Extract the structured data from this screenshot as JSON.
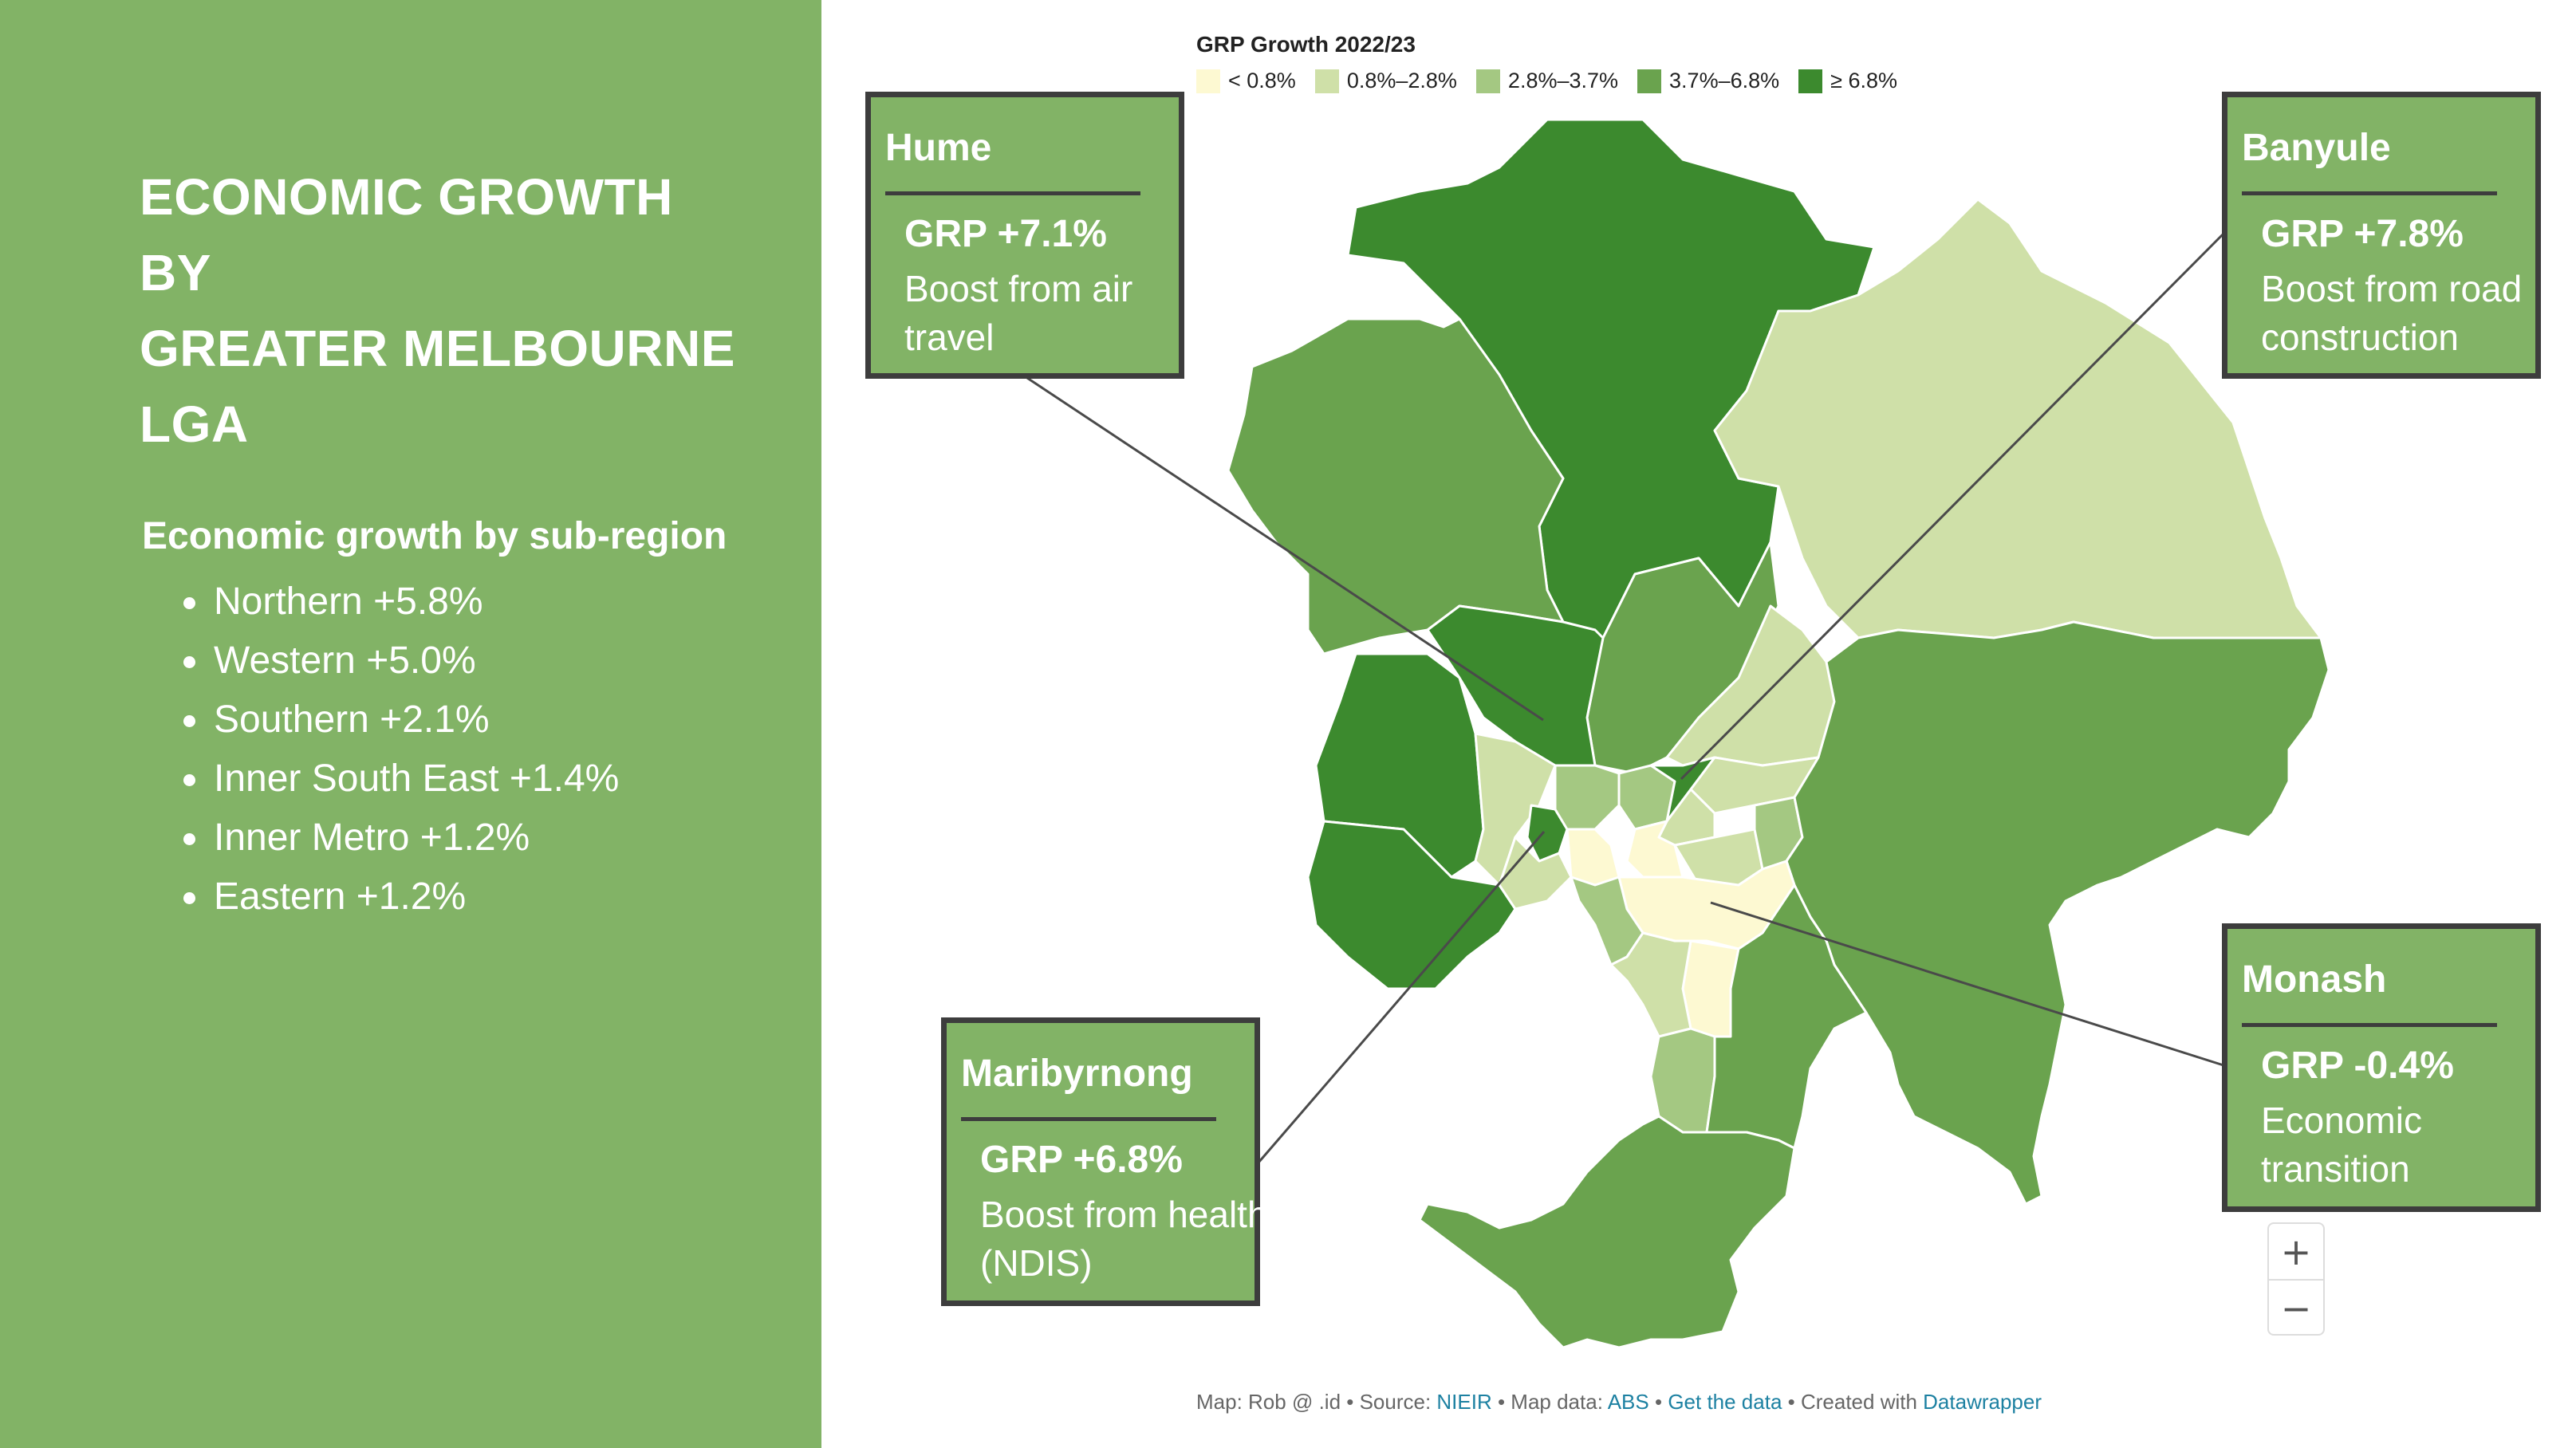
{
  "sidebar": {
    "title_lines": [
      "ECONOMIC GROWTH BY",
      "GREATER MELBOURNE",
      "LGA"
    ],
    "subregion_heading": "Economic growth by sub-region",
    "subregions": [
      {
        "name": "Northern",
        "value": "+5.8%"
      },
      {
        "name": "Western",
        "value": "+5.0%"
      },
      {
        "name": "Southern",
        "value": "+2.1%"
      },
      {
        "name": "Inner South East",
        "value": "+1.4%"
      },
      {
        "name": "Inner Metro",
        "value": "+1.2%"
      },
      {
        "name": "Eastern",
        "value": "+1.2%"
      }
    ]
  },
  "legend": {
    "title": "GRP Growth 2022/23",
    "items": [
      {
        "label": "< 0.8%",
        "color": "#fdf9d2"
      },
      {
        "label": "0.8%–2.8%",
        "color": "#cfe0a8"
      },
      {
        "label": "2.8%–3.7%",
        "color": "#a4c882"
      },
      {
        "label": "3.7%–6.8%",
        "color": "#6aa34e"
      },
      {
        "label": "≥ 6.8%",
        "color": "#3c8a2e"
      }
    ]
  },
  "callouts": {
    "hume": {
      "title": "Hume",
      "grp": "GRP +7.1%",
      "desc": [
        "Boost from air",
        "travel"
      ]
    },
    "banyule": {
      "title": "Banyule",
      "grp": "GRP +7.8%",
      "desc": [
        "Boost from road",
        "construction"
      ]
    },
    "maribyrnong": {
      "title": "Maribyrnong",
      "grp": "GRP +6.8%",
      "desc": [
        "Boost from health",
        "(NDIS)"
      ]
    },
    "monash": {
      "title": "Monash",
      "grp": "GRP -0.4%",
      "desc": [
        "Economic",
        "transition"
      ]
    }
  },
  "zoom": {
    "in": "+",
    "out": "−"
  },
  "footer": {
    "p1": "Map: Rob @ .id • Source: ",
    "source_link": "NIEIR",
    "p2": " • Map data: ",
    "data_link": "ABS",
    "sep": " • ",
    "get_data_link": "Get the data",
    "p3": " • Created with ",
    "tool_link": "Datawrapper"
  },
  "colors": {
    "sidebar_bg": "#82b366",
    "callout_border": "#3d3d3d"
  }
}
